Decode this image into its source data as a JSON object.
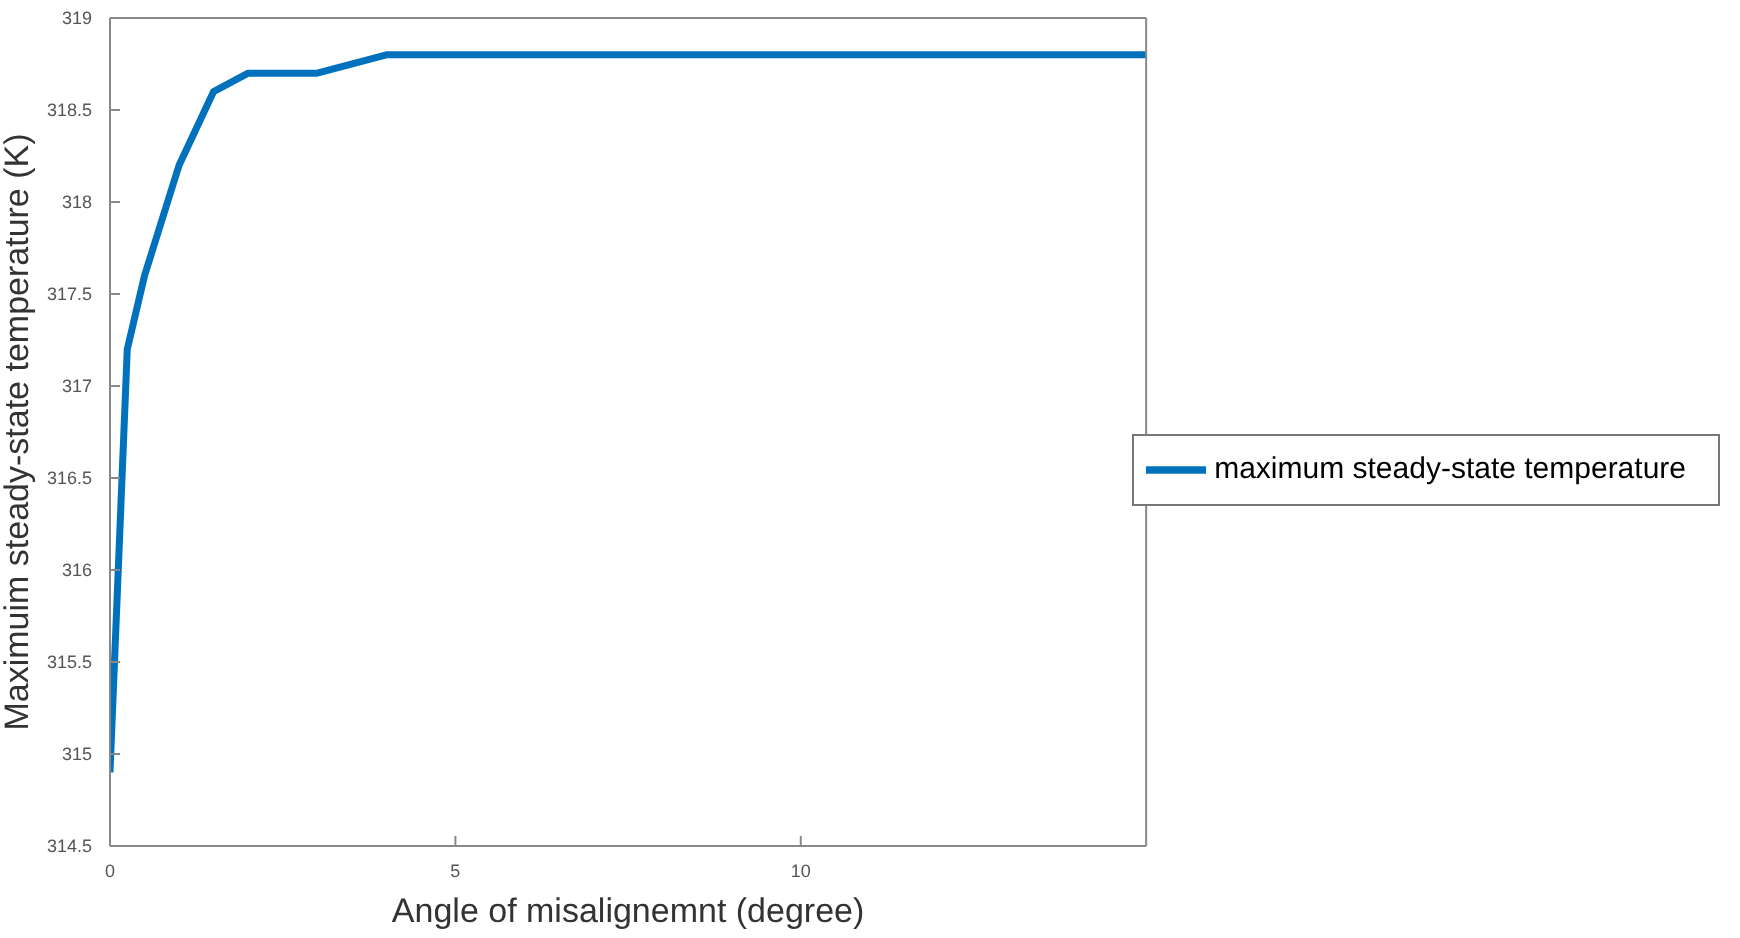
{
  "chart_data": {
    "type": "line",
    "xlabel": "Angle of misalignemnt (degree)",
    "ylabel": "Maximuim steady-state temperature (K)",
    "x": [
      0,
      0.25,
      0.5,
      1,
      1.5,
      2,
      3,
      4,
      15
    ],
    "series": [
      {
        "name": "maximum steady-state temperature",
        "color": "#0072bd",
        "values": [
          314.9,
          317.2,
          317.6,
          318.2,
          318.6,
          318.7,
          318.7,
          318.8,
          318.8
        ]
      }
    ],
    "xlim": [
      0,
      15
    ],
    "xticks": [
      0,
      5,
      10
    ],
    "ylim": [
      314.5,
      319
    ],
    "yticks": [
      314.5,
      315,
      315.5,
      316,
      316.5,
      317,
      317.5,
      318,
      318.5,
      319
    ],
    "grid": false,
    "legend": "right",
    "marker": "none",
    "line_style": "solid"
  }
}
